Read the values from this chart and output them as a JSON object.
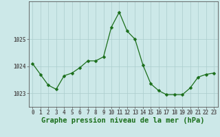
{
  "x": [
    0,
    1,
    2,
    3,
    4,
    5,
    6,
    7,
    8,
    9,
    10,
    11,
    12,
    13,
    14,
    15,
    16,
    17,
    18,
    19,
    20,
    21,
    22,
    23
  ],
  "y": [
    1024.1,
    1023.7,
    1023.3,
    1023.15,
    1023.65,
    1023.75,
    1023.95,
    1024.2,
    1024.2,
    1024.35,
    1025.45,
    1026.0,
    1025.3,
    1025.0,
    1024.05,
    1023.35,
    1023.1,
    1022.95,
    1022.95,
    1022.95,
    1023.2,
    1023.6,
    1023.7,
    1023.75
  ],
  "line_color": "#1a6e1a",
  "marker": "D",
  "marker_size": 2.5,
  "bg_color": "#cce8e8",
  "grid_color": "#aacccc",
  "xlabel": "Graphe pression niveau de la mer (hPa)",
  "xlabel_color": "#1a6e1a",
  "xlabel_fontsize": 7.5,
  "ylabel_ticks": [
    1023,
    1024,
    1025
  ],
  "ylim": [
    1022.5,
    1026.4
  ],
  "xlim": [
    -0.5,
    23.5
  ],
  "xticks": [
    0,
    1,
    2,
    3,
    4,
    5,
    6,
    7,
    8,
    9,
    10,
    11,
    12,
    13,
    14,
    15,
    16,
    17,
    18,
    19,
    20,
    21,
    22,
    23
  ],
  "tick_label_fontsize": 5.5,
  "axis_color": "#555555"
}
